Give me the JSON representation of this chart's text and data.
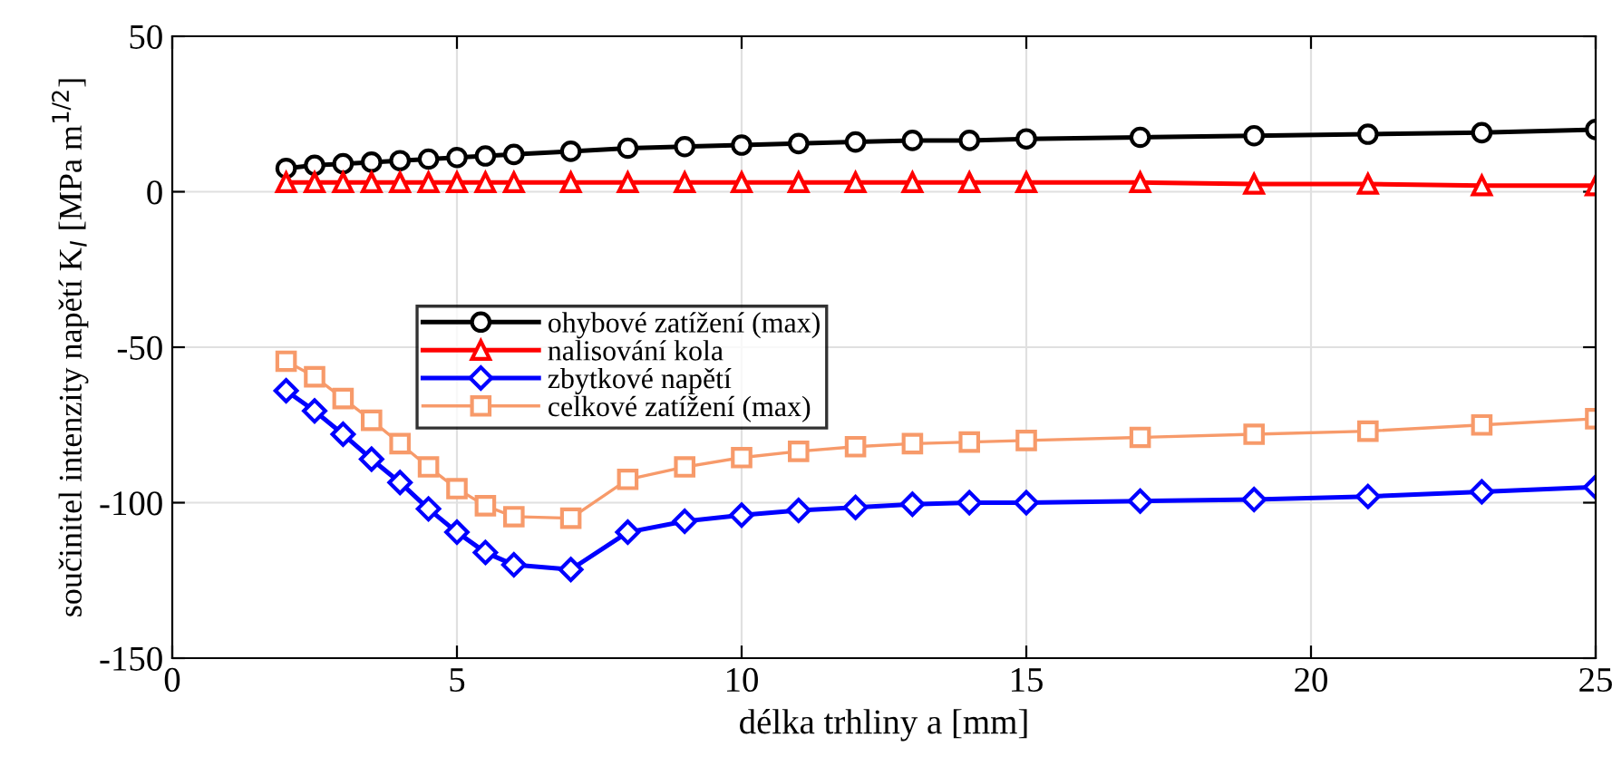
{
  "chart_data": {
    "type": "line",
    "xlabel": "délka trhliny a [mm]",
    "ylabel": "součinitel intenzity napětí K$_{I}$ [MPa m$^{1/2}$]",
    "x": [
      2,
      2.5,
      3,
      3.5,
      4,
      4.5,
      5,
      5.5,
      6,
      7,
      8,
      9,
      10,
      11,
      12,
      13,
      14,
      15,
      17,
      19,
      21,
      23,
      25
    ],
    "series": [
      {
        "name": "ohybové zatížení (max)",
        "color": "#000000",
        "marker": "circle",
        "values": [
          7.5,
          8.5,
          9,
          9.5,
          10,
          10.5,
          11,
          11.5,
          12,
          13,
          14,
          14.5,
          15,
          15.5,
          16,
          16.5,
          16.5,
          17,
          17.5,
          18,
          18.5,
          19,
          20
        ]
      },
      {
        "name": "nalisování kola",
        "color": "#ff0000",
        "marker": "triangle",
        "values": [
          3,
          3,
          3,
          3,
          3,
          3,
          3,
          3,
          3,
          3,
          3,
          3,
          3,
          3,
          3,
          3,
          3,
          3,
          3,
          2.5,
          2.5,
          2,
          2
        ]
      },
      {
        "name": "zbytkové napětí",
        "color": "#0000ff",
        "marker": "diamond",
        "values": [
          -64,
          -70.5,
          -78,
          -86,
          -93.5,
          -102,
          -109.5,
          -116,
          -120,
          -121.5,
          -109.5,
          -106,
          -104,
          -102.5,
          -101.5,
          -100.5,
          -100,
          -100,
          -99.5,
          -99,
          -98,
          -96.5,
          -95
        ]
      },
      {
        "name": "celkové zatížení (max)",
        "color": "#f79a6a",
        "marker": "square",
        "values": [
          -54.5,
          -59.5,
          -66.5,
          -73.5,
          -81,
          -88.5,
          -95.5,
          -101,
          -104.5,
          -105,
          -92.5,
          -88.5,
          -85.5,
          -83.5,
          -82,
          -81,
          -80.5,
          -80,
          -79,
          -78,
          -77,
          -75,
          -73
        ]
      }
    ],
    "xlim": [
      0,
      25
    ],
    "xticks": [
      0,
      5,
      10,
      15,
      20,
      25
    ],
    "ylim": [
      -150,
      50
    ],
    "yticks": [
      -150,
      -100,
      -50,
      0,
      50
    ],
    "grid": true,
    "legend": "center left",
    "line_style": "solid"
  }
}
